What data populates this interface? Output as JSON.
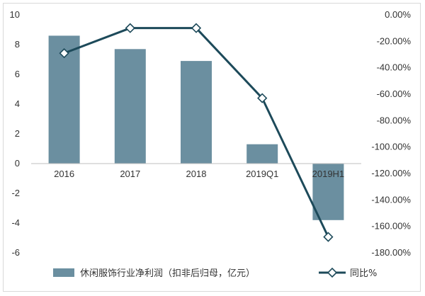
{
  "chart_data": {
    "type": "bar",
    "categories": [
      "2016",
      "2017",
      "2018",
      "2019Q1",
      "2019H1"
    ],
    "series": [
      {
        "name": "休闲服饰行业净利润（扣非后归母，亿元）",
        "type": "bar",
        "axis": "left",
        "values": [
          8.6,
          7.7,
          6.9,
          1.3,
          -3.8
        ],
        "color": "#6b8fa0"
      },
      {
        "name": "同比%",
        "type": "line",
        "axis": "right",
        "values": [
          -29,
          -10,
          -10,
          -63,
          -168
        ],
        "color": "#1d4a5a",
        "marker": "diamond"
      }
    ],
    "y_left": {
      "ylim": [
        -6,
        10
      ],
      "ticks": [
        "10",
        "8",
        "6",
        "4",
        "2",
        "0",
        "-2",
        "-4",
        "-6"
      ]
    },
    "y_right": {
      "ylim": [
        -180,
        0
      ],
      "ticks": [
        "0.00%",
        "-20.00%",
        "-40.00%",
        "-60.00%",
        "-80.00%",
        "-100.00%",
        "-120.00%",
        "-140.00%",
        "-160.00%",
        "-180.00%"
      ]
    },
    "legend_position": "bottom",
    "grid": false
  }
}
